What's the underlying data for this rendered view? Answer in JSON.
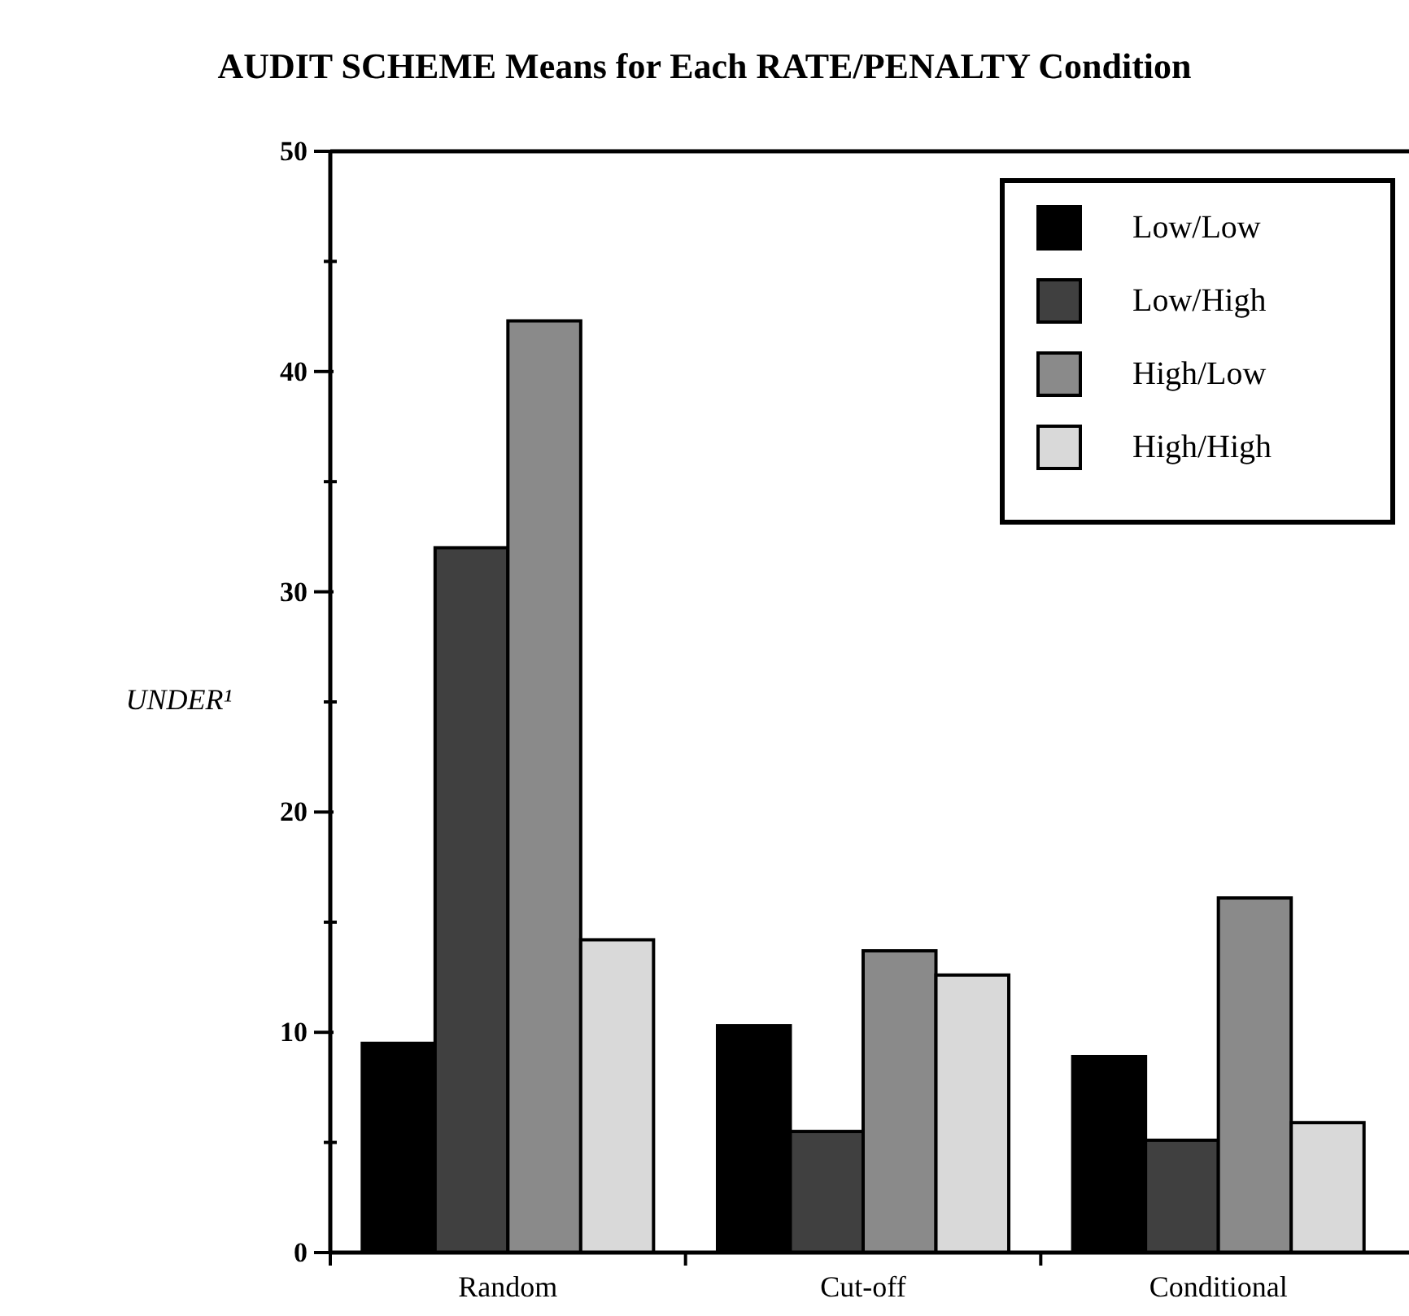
{
  "chart_data": {
    "type": "bar",
    "title": "AUDIT SCHEME Means for Each RATE/PENALTY Condition",
    "ylabel": "UNDER¹",
    "categories": [
      "Random",
      "Cut-off",
      "Conditional"
    ],
    "series": [
      {
        "name": "Low/Low",
        "color": "#000000",
        "values": [
          9.5,
          10.3,
          8.9
        ]
      },
      {
        "name": "Low/High",
        "color": "#404040",
        "values": [
          32,
          5.5,
          5.1
        ]
      },
      {
        "name": "High/Low",
        "color": "#8a8a8a",
        "values": [
          42.3,
          13.7,
          16.1
        ]
      },
      {
        "name": "High/High",
        "color": "#d9d9d9",
        "values": [
          14.2,
          12.6,
          5.9
        ]
      }
    ],
    "ylim": [
      0,
      50
    ],
    "yticks": [
      0,
      {
        "value": 5,
        "label": null
      },
      10,
      {
        "value": 15,
        "label": null
      },
      20,
      {
        "value": 25,
        "label": null
      },
      30,
      {
        "value": 35,
        "label": null
      },
      40,
      {
        "value": 45,
        "label": null
      },
      50
    ],
    "legend": "top right",
    "grid": false
  }
}
